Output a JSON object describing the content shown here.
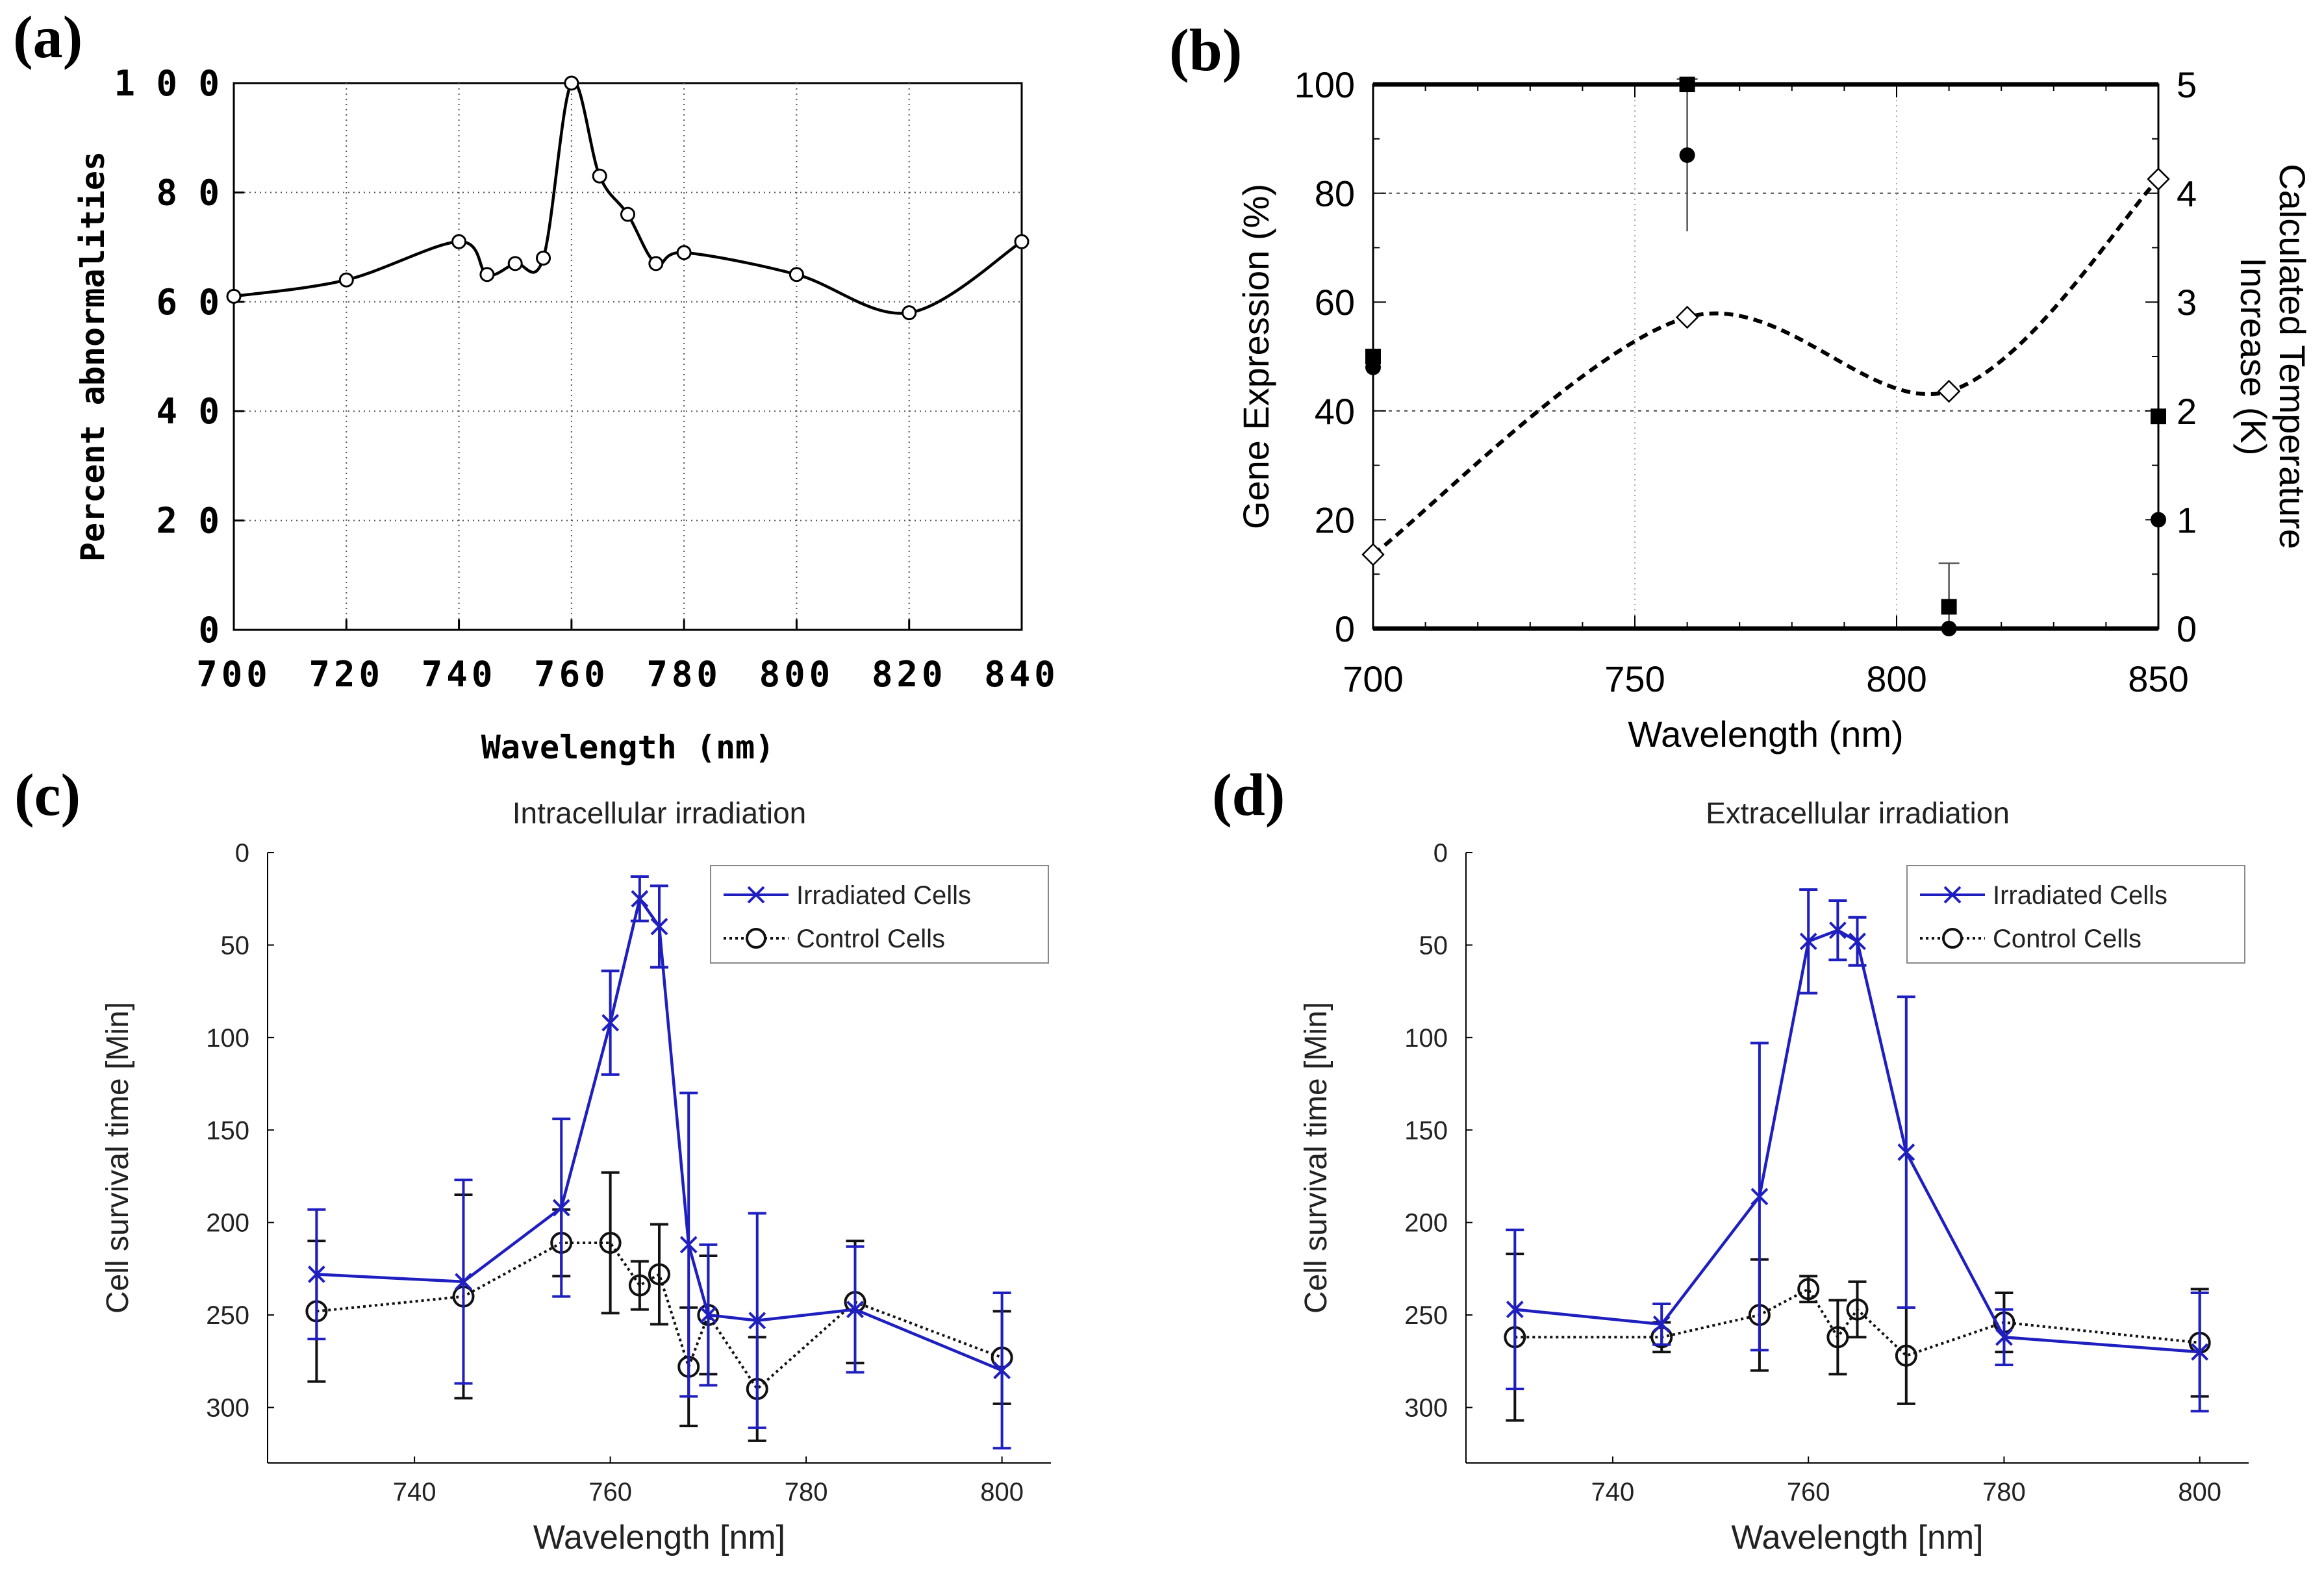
{
  "figure": {
    "panel_labels": [
      "(a)",
      "(b)",
      "(c)",
      "(d)"
    ]
  },
  "chart_data": [
    {
      "id": "a",
      "type": "line",
      "title": "",
      "xlabel": "Wavelength  (nm)",
      "ylabel": "Percent   abnormalities",
      "xlim": [
        700,
        840
      ],
      "ylim": [
        0,
        100
      ],
      "xticks": [
        700,
        720,
        740,
        760,
        780,
        800,
        820,
        840
      ],
      "yticks": [
        0,
        20,
        40,
        60,
        80,
        100
      ],
      "ytick_labels": [
        "0",
        "2 0",
        "4 0",
        "6 0",
        "8 0",
        "1 0 0"
      ],
      "grid": true,
      "series": [
        {
          "name": "Percent abnormalities",
          "marker": "open-circle",
          "x": [
            700,
            720,
            740,
            745,
            750,
            755,
            760,
            765,
            770,
            775,
            780,
            800,
            820,
            840
          ],
          "y": [
            61,
            64,
            71,
            65,
            67,
            68,
            100,
            83,
            76,
            67,
            69,
            65,
            58,
            71
          ]
        }
      ]
    },
    {
      "id": "b",
      "type": "scatter",
      "title": "",
      "xlabel": "Wavelength (nm)",
      "ylabel": "Gene Expression (%)",
      "y2label_line1": "Calculated Temperature",
      "y2label_line2": "Increase (K)",
      "xlim": [
        700,
        850
      ],
      "ylim": [
        0,
        100
      ],
      "y2lim": [
        0,
        5
      ],
      "xticks": [
        700,
        750,
        800,
        850
      ],
      "yticks": [
        0,
        20,
        40,
        60,
        80,
        100
      ],
      "y2ticks": [
        0,
        1,
        2,
        3,
        4,
        5
      ],
      "series": [
        {
          "name": "Gene expression (squares)",
          "marker": "filled-square",
          "x": [
            700,
            760,
            810,
            850
          ],
          "y": [
            50,
            100,
            4,
            39
          ],
          "err": [
            0,
            0,
            0,
            0
          ]
        },
        {
          "name": "Gene expression (circles)",
          "marker": "filled-circle",
          "x": [
            700,
            760,
            810,
            850
          ],
          "y": [
            48,
            87,
            0,
            20
          ],
          "err": [
            0,
            14,
            12,
            0
          ]
        },
        {
          "name": "Calculated temperature increase",
          "marker": "open-diamond",
          "axis": "right",
          "x": [
            700,
            760,
            810,
            850
          ],
          "y": [
            0.68,
            2.86,
            2.18,
            4.13
          ]
        }
      ]
    },
    {
      "id": "c",
      "type": "line",
      "title": "Intracellular irradiation",
      "xlabel": "Wavelength [nm]",
      "ylabel": "Cell survival time [Min]",
      "xlim": [
        725,
        805
      ],
      "ylim": [
        0,
        330
      ],
      "y_inverted": true,
      "xticks": [
        740,
        760,
        780,
        800
      ],
      "yticks": [
        0,
        50,
        100,
        150,
        200,
        250,
        300
      ],
      "legend": {
        "position": "top-right",
        "entries": [
          "Irradiated Cells",
          "Control Cells"
        ]
      },
      "series": [
        {
          "name": "Irradiated Cells",
          "color": "#1f1fc0",
          "marker": "x",
          "x": [
            730,
            745,
            755,
            760,
            763,
            765,
            768,
            770,
            775,
            785,
            800
          ],
          "y": [
            228,
            232,
            192,
            92,
            25,
            40,
            212,
            250,
            253,
            247,
            280
          ],
          "err": [
            35,
            55,
            48,
            28,
            12,
            22,
            82,
            38,
            58,
            34,
            42
          ]
        },
        {
          "name": "Control Cells",
          "color": "#111111",
          "marker": "o",
          "x": [
            730,
            745,
            755,
            760,
            763,
            765,
            768,
            770,
            775,
            785,
            800
          ],
          "y": [
            248,
            240,
            211,
            211,
            234,
            228,
            278,
            250,
            290,
            243,
            273
          ],
          "err": [
            38,
            55,
            18,
            38,
            13,
            27,
            32,
            32,
            28,
            33,
            25
          ]
        }
      ]
    },
    {
      "id": "d",
      "type": "line",
      "title": "Extracellular irradiation",
      "xlabel": "Wavelength [nm]",
      "ylabel": "Cell survival time [Min]",
      "xlim": [
        725,
        805
      ],
      "ylim": [
        0,
        330
      ],
      "y_inverted": true,
      "xticks": [
        740,
        760,
        780,
        800
      ],
      "yticks": [
        0,
        50,
        100,
        150,
        200,
        250,
        300
      ],
      "legend": {
        "position": "top-right",
        "entries": [
          "Irradiated Cells",
          "Control Cells"
        ]
      },
      "series": [
        {
          "name": "Irradiated Cells",
          "color": "#1f1fc0",
          "marker": "x",
          "x": [
            730,
            745,
            755,
            760,
            763,
            765,
            770,
            780,
            800
          ],
          "y": [
            247,
            255,
            186,
            48,
            42,
            48,
            162,
            262,
            270
          ],
          "err": [
            43,
            11,
            83,
            28,
            16,
            13,
            84,
            15,
            32
          ]
        },
        {
          "name": "Control Cells",
          "color": "#111111",
          "marker": "o",
          "x": [
            730,
            745,
            755,
            760,
            763,
            765,
            770,
            780,
            800
          ],
          "y": [
            262,
            262,
            250,
            236,
            262,
            247,
            272,
            254,
            265
          ],
          "err": [
            45,
            8,
            30,
            7,
            20,
            15,
            26,
            16,
            29
          ]
        }
      ]
    }
  ]
}
